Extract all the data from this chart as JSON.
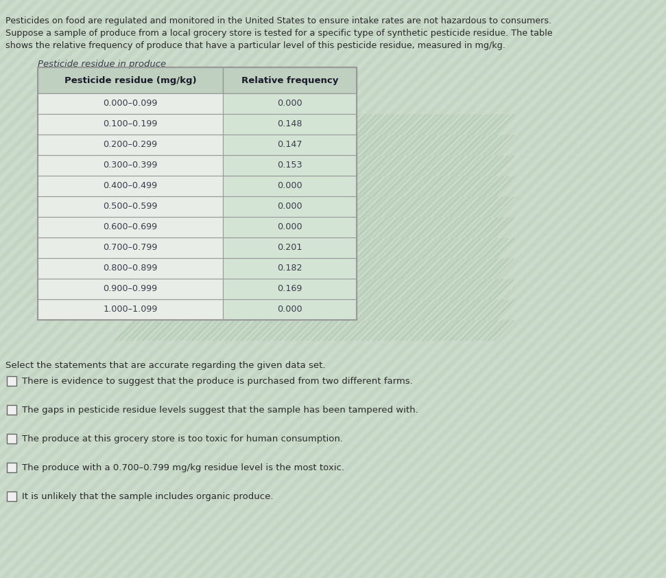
{
  "intro_lines": [
    "Pesticides on food are regulated and monitored in the United States to ensure intake rates are not hazardous to consumers.",
    "Suppose a sample of produce from a local grocery store is tested for a specific type of synthetic pesticide residue. The table",
    "shows the relative frequency of produce that have a particular level of this pesticide residue, measured in mg/kg."
  ],
  "table_title": "Pesticide residue in produce",
  "col1_header": "Pesticide residue (mg/kg)",
  "col2_header": "Relative frequency",
  "rows": [
    [
      "0.000–0.099",
      "0.000"
    ],
    [
      "0.100–0.199",
      "0.148"
    ],
    [
      "0.200–0.299",
      "0.147"
    ],
    [
      "0.300–0.399",
      "0.153"
    ],
    [
      "0.400–0.499",
      "0.000"
    ],
    [
      "0.500–0.599",
      "0.000"
    ],
    [
      "0.600–0.699",
      "0.000"
    ],
    [
      "0.700–0.799",
      "0.201"
    ],
    [
      "0.800–0.899",
      "0.182"
    ],
    [
      "0.900–0.999",
      "0.169"
    ],
    [
      "1.000–1.099",
      "0.000"
    ]
  ],
  "select_text": "Select the statements that are accurate regarding the given data set.",
  "statements": [
    "There is evidence to suggest that the produce is purchased from two different farms.",
    "The gaps in pesticide residue levels suggest that the sample has been tampered with.",
    "The produce at this grocery store is too toxic for human consumption.",
    "The produce with a 0.700–0.799 mg/kg residue level is the most toxic.",
    "It is unlikely that the sample includes organic produce."
  ],
  "bg_color": "#ccdccc",
  "table_col1_bg": "#e8ede8",
  "table_col2_bg": "#d4e4d4",
  "table_header_bg": "#c0d0c0",
  "table_border_color": "#999999",
  "text_color": "#2a2a2a",
  "header_text_color": "#1a1a2a",
  "data_text_color": "#3a3a4a",
  "checkbox_color": "#f0f0f0",
  "checkbox_border": "#666666",
  "stripe_color1": "#c8dcc8",
  "stripe_color2": "#d8e8d8"
}
